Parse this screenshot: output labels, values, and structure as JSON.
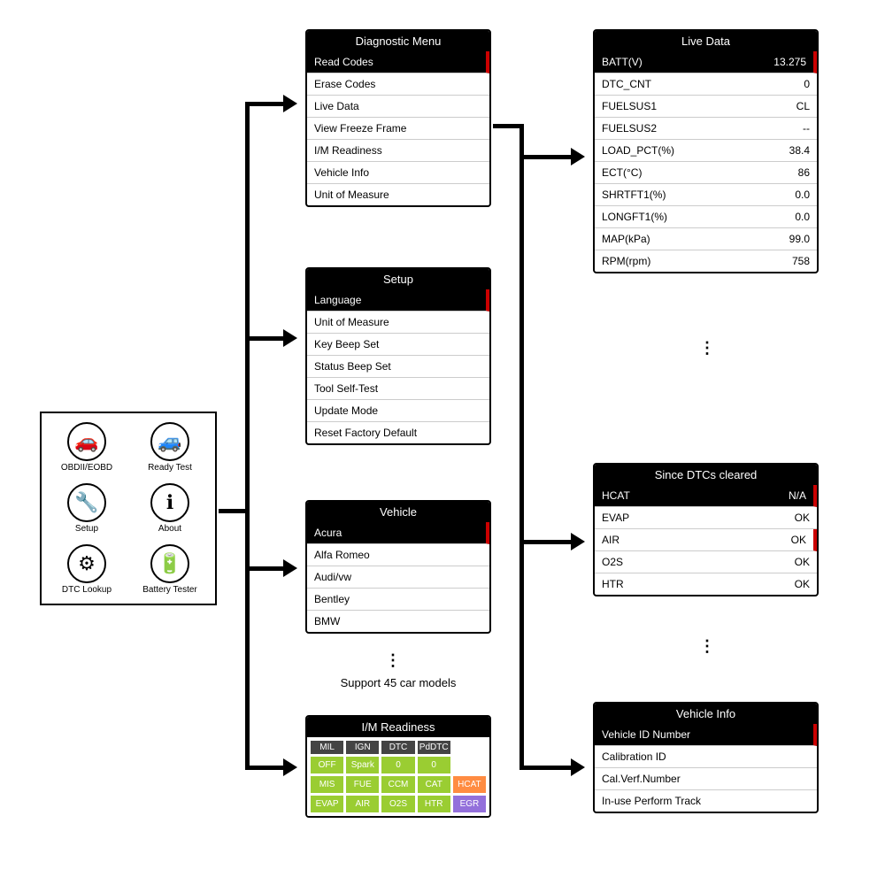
{
  "mainMenu": {
    "items": [
      {
        "label": "OBDII/EOBD",
        "icon": "🚗"
      },
      {
        "label": "Ready Test",
        "icon": "🚙"
      },
      {
        "label": "Setup",
        "icon": "🔧"
      },
      {
        "label": "About",
        "icon": "ℹ"
      },
      {
        "label": "DTC Lookup",
        "icon": "⚙"
      },
      {
        "label": "Battery Tester",
        "icon": "🔋"
      }
    ]
  },
  "diagnostic": {
    "title": "Diagnostic Menu",
    "items": [
      "Read Codes",
      "Erase Codes",
      "Live Data",
      "View Freeze Frame",
      "I/M Readiness",
      "Vehicle Info",
      "Unit of Measure"
    ],
    "selectedIndex": 0
  },
  "setup": {
    "title": "Setup",
    "items": [
      "Language",
      "Unit of Measure",
      "Key Beep Set",
      "Status Beep Set",
      "Tool Self-Test",
      "Update Mode",
      "Reset Factory Default"
    ],
    "selectedIndex": 0
  },
  "vehicle": {
    "title": "Vehicle",
    "items": [
      "Acura",
      "Alfa Romeo",
      "Audi/vw",
      "Bentley",
      "BMW"
    ],
    "selectedIndex": 0,
    "caption": "Support 45 car models"
  },
  "imReadiness": {
    "title": "I/M Readiness",
    "headers": [
      "MIL",
      "IGN",
      "DTC",
      "PdDTC",
      ""
    ],
    "row0": [
      {
        "label": "OFF",
        "color": "#9acd32"
      },
      {
        "label": "Spark",
        "color": "#9acd32"
      },
      {
        "label": "0",
        "color": "#9acd32"
      },
      {
        "label": "0",
        "color": "#9acd32"
      },
      {
        "label": "",
        "color": "transparent"
      }
    ],
    "row1": [
      {
        "label": "MIS",
        "color": "#9acd32"
      },
      {
        "label": "FUE",
        "color": "#9acd32"
      },
      {
        "label": "CCM",
        "color": "#9acd32"
      },
      {
        "label": "CAT",
        "color": "#9acd32"
      },
      {
        "label": "HCAT",
        "color": "#ff8c42"
      }
    ],
    "row2": [
      {
        "label": "EVAP",
        "color": "#9acd32"
      },
      {
        "label": "AIR",
        "color": "#9acd32"
      },
      {
        "label": "O2S",
        "color": "#9acd32"
      },
      {
        "label": "HTR",
        "color": "#9acd32"
      },
      {
        "label": "EGR",
        "color": "#9370db"
      }
    ]
  },
  "liveData": {
    "title": "Live Data",
    "rows": [
      {
        "k": "BATT(V)",
        "v": "13.275",
        "sel": true
      },
      {
        "k": "DTC_CNT",
        "v": "0"
      },
      {
        "k": "FUELSUS1",
        "v": "CL"
      },
      {
        "k": "FUELSUS2",
        "v": "--"
      },
      {
        "k": "LOAD_PCT(%)",
        "v": "38.4"
      },
      {
        "k": "ECT(°C)",
        "v": "86"
      },
      {
        "k": "SHRTFT1(%)",
        "v": "0.0"
      },
      {
        "k": "LONGFT1(%)",
        "v": "0.0"
      },
      {
        "k": "MAP(kPa)",
        "v": "99.0"
      },
      {
        "k": "RPM(rpm)",
        "v": "758"
      }
    ]
  },
  "sinceDtc": {
    "title": "Since DTCs cleared",
    "rows": [
      {
        "k": "HCAT",
        "v": "N/A",
        "sel": true
      },
      {
        "k": "EVAP",
        "v": "OK"
      },
      {
        "k": "AIR",
        "v": "OK",
        "scroll": true
      },
      {
        "k": "O2S",
        "v": "OK"
      },
      {
        "k": "HTR",
        "v": "OK"
      }
    ]
  },
  "vehicleInfo": {
    "title": "Vehicle Info",
    "items": [
      "Vehicle ID Number",
      "Calibration ID",
      "Cal.Verf.Number",
      "In-use Perform Track"
    ],
    "selectedIndex": 0
  },
  "colors": {
    "black": "#000000",
    "white": "#ffffff",
    "green": "#9acd32",
    "orange": "#ff8c42",
    "purple": "#9370db",
    "red": "#cc0000"
  }
}
